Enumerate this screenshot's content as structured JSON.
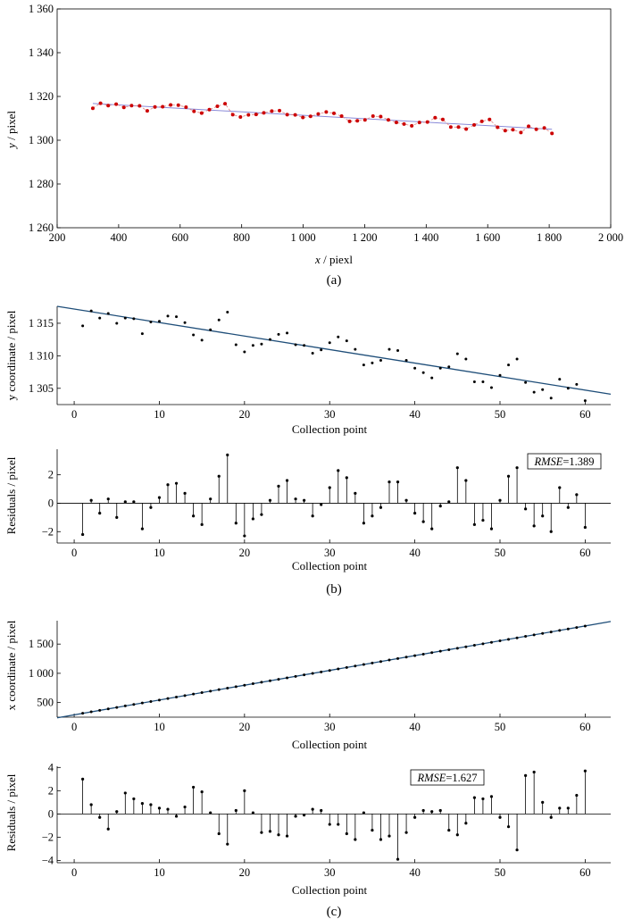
{
  "figure": {
    "panel_labels": [
      "(a)",
      "(b)",
      "(c)"
    ]
  },
  "colors": {
    "axis": "#000000",
    "red_points": "#cc0000",
    "red_line": "#e08080",
    "fit_a": "#8a8ad8",
    "fit_b": "#1f4e79",
    "fit_c": "#1f4e79",
    "points": "#000000"
  },
  "chart_data": [
    {
      "id": "a",
      "type": "scatter",
      "title": "",
      "xlabel_var": "x",
      "xlabel_unit": " / piexl",
      "ylabel_var": "y",
      "ylabel_unit": " / pixel",
      "xlim": [
        200,
        2000
      ],
      "ylim": [
        1260,
        1360
      ],
      "xticks": [
        200,
        400,
        600,
        800,
        1000,
        1200,
        1400,
        1600,
        1800,
        2000
      ],
      "xtick_labels": [
        "200",
        "400",
        "600",
        "800",
        "1 000",
        "1 200",
        "1 400",
        "1 600",
        "1 800",
        "2 000"
      ],
      "yticks": [
        1260,
        1280,
        1300,
        1320,
        1340,
        1360
      ],
      "ytick_labels": [
        "1 260",
        "1 280",
        "1 300",
        "1 320",
        "1 340",
        "1 360"
      ],
      "fit": {
        "x": [
          316,
          1809
        ],
        "y": [
          1316.8,
          1305.0
        ]
      },
      "series": [
        {
          "name": "points",
          "x": [
            316,
            341,
            366,
            392,
            417,
            442,
            468,
            493,
            518,
            543,
            569,
            594,
            619,
            645,
            670,
            695,
            721,
            746,
            771,
            796,
            822,
            847,
            872,
            898,
            923,
            948,
            974,
            999,
            1024,
            1049,
            1075,
            1100,
            1125,
            1151,
            1176,
            1201,
            1227,
            1252,
            1277,
            1303,
            1328,
            1353,
            1378,
            1404,
            1429,
            1454,
            1480,
            1505,
            1530,
            1556,
            1581,
            1606,
            1632,
            1657,
            1682,
            1708,
            1733,
            1758,
            1784,
            1809
          ],
          "y": [
            1314.6,
            1316.9,
            1315.8,
            1316.5,
            1315.0,
            1315.8,
            1315.7,
            1313.4,
            1315.2,
            1315.3,
            1316.1,
            1316.0,
            1315.1,
            1313.2,
            1312.4,
            1314.0,
            1315.5,
            1316.7,
            1311.7,
            1310.6,
            1311.6,
            1311.8,
            1312.5,
            1313.3,
            1313.5,
            1311.7,
            1311.6,
            1310.4,
            1310.9,
            1312.0,
            1312.9,
            1312.3,
            1311.0,
            1308.6,
            1308.9,
            1309.3,
            1311.0,
            1310.8,
            1309.3,
            1308.1,
            1307.4,
            1306.6,
            1308.1,
            1308.3,
            1310.3,
            1309.5,
            1306.0,
            1306.0,
            1305.1,
            1307.0,
            1308.6,
            1309.5,
            1305.9,
            1304.4,
            1304.8,
            1303.5,
            1306.4,
            1305.0,
            1305.6,
            1303.1
          ]
        }
      ]
    },
    {
      "id": "b1",
      "type": "scatter",
      "xlabel": "Collection point",
      "ylabel": "y coordinate / pixel",
      "xlim": [
        -2,
        63
      ],
      "ylim": [
        1302.5,
        1317.6
      ],
      "xticks": [
        0,
        10,
        20,
        30,
        40,
        50,
        60
      ],
      "xtick_labels": [
        "0",
        "10",
        "20",
        "30",
        "40",
        "50",
        "60"
      ],
      "yticks": [
        1305,
        1310,
        1315
      ],
      "ytick_labels": [
        "1 305",
        "1 310",
        "1 315"
      ],
      "fit": {
        "x": [
          -2,
          63
        ],
        "y": [
          1317.6,
          1304.1
        ]
      },
      "x": [
        1,
        2,
        3,
        4,
        5,
        6,
        7,
        8,
        9,
        10,
        11,
        12,
        13,
        14,
        15,
        16,
        17,
        18,
        19,
        20,
        21,
        22,
        23,
        24,
        25,
        26,
        27,
        28,
        29,
        30,
        31,
        32,
        33,
        34,
        35,
        36,
        37,
        38,
        39,
        40,
        41,
        42,
        43,
        44,
        45,
        46,
        47,
        48,
        49,
        50,
        51,
        52,
        53,
        54,
        55,
        56,
        57,
        58,
        59,
        60
      ],
      "y": [
        1314.6,
        1316.9,
        1315.8,
        1316.5,
        1315.0,
        1315.8,
        1315.7,
        1313.4,
        1315.2,
        1315.3,
        1316.1,
        1316.0,
        1315.1,
        1313.2,
        1312.4,
        1314.0,
        1315.5,
        1316.7,
        1311.7,
        1310.6,
        1311.6,
        1311.8,
        1312.5,
        1313.3,
        1313.5,
        1311.7,
        1311.6,
        1310.4,
        1310.9,
        1312.0,
        1312.9,
        1312.3,
        1311.0,
        1308.6,
        1308.9,
        1309.3,
        1311.0,
        1310.8,
        1309.3,
        1308.1,
        1307.4,
        1306.6,
        1308.1,
        1308.3,
        1310.3,
        1309.5,
        1306.0,
        1306.0,
        1305.1,
        1307.0,
        1308.6,
        1309.5,
        1305.9,
        1304.4,
        1304.8,
        1303.5,
        1306.4,
        1305.0,
        1305.6,
        1303.1
      ]
    },
    {
      "id": "b2",
      "type": "stem",
      "xlabel": "Collection point",
      "ylabel": "Residuals / pixel",
      "rmse_label": "RMSE",
      "rmse_value": "=1.389",
      "xlim": [
        -2,
        63
      ],
      "ylim": [
        -2.8,
        3.8
      ],
      "xticks": [
        0,
        10,
        20,
        30,
        40,
        50,
        60
      ],
      "xtick_labels": [
        "0",
        "10",
        "20",
        "30",
        "40",
        "50",
        "60"
      ],
      "yticks": [
        -2,
        0,
        2
      ],
      "ytick_labels": [
        "−2",
        "0",
        "2"
      ],
      "x": [
        1,
        2,
        3,
        4,
        5,
        6,
        7,
        8,
        9,
        10,
        11,
        12,
        13,
        14,
        15,
        16,
        17,
        18,
        19,
        20,
        21,
        22,
        23,
        24,
        25,
        26,
        27,
        28,
        29,
        30,
        31,
        32,
        33,
        34,
        35,
        36,
        37,
        38,
        39,
        40,
        41,
        42,
        43,
        44,
        45,
        46,
        47,
        48,
        49,
        50,
        51,
        52,
        53,
        54,
        55,
        56,
        57,
        58,
        59,
        60
      ],
      "y": [
        -2.2,
        0.2,
        -0.7,
        0.3,
        -1.0,
        0.1,
        0.1,
        -1.8,
        -0.3,
        0.4,
        1.3,
        1.4,
        0.7,
        -0.9,
        -1.5,
        0.3,
        1.9,
        3.4,
        -1.4,
        -2.3,
        -1.1,
        -0.8,
        0.2,
        1.2,
        1.6,
        0.3,
        0.2,
        -0.9,
        -0.1,
        1.1,
        2.3,
        1.8,
        0.7,
        -1.4,
        -0.9,
        -0.3,
        1.5,
        1.5,
        0.2,
        -0.7,
        -1.3,
        -1.8,
        -0.2,
        0.1,
        2.5,
        1.6,
        -1.5,
        -1.2,
        -1.8,
        0.2,
        1.9,
        2.5,
        -0.4,
        -1.6,
        -0.9,
        -2.0,
        1.1,
        -0.3,
        0.6,
        -1.7
      ]
    },
    {
      "id": "c1",
      "type": "scatter",
      "xlabel": "Collection point",
      "ylabel": "x coordinate / pixel",
      "xlim": [
        -2,
        63
      ],
      "ylim": [
        250,
        1900
      ],
      "xticks": [
        0,
        10,
        20,
        30,
        40,
        50,
        60
      ],
      "xtick_labels": [
        "0",
        "10",
        "20",
        "30",
        "40",
        "50",
        "60"
      ],
      "yticks": [
        500,
        1000,
        1500
      ],
      "ytick_labels": [
        "500",
        "1 000",
        "1 500"
      ],
      "fit": {
        "x": [
          -2,
          63
        ],
        "y": [
          239,
          1886
        ]
      },
      "x": [
        1,
        2,
        3,
        4,
        5,
        6,
        7,
        8,
        9,
        10,
        11,
        12,
        13,
        14,
        15,
        16,
        17,
        18,
        19,
        20,
        21,
        22,
        23,
        24,
        25,
        26,
        27,
        28,
        29,
        30,
        31,
        32,
        33,
        34,
        35,
        36,
        37,
        38,
        39,
        40,
        41,
        42,
        43,
        44,
        45,
        46,
        47,
        48,
        49,
        50,
        51,
        52,
        53,
        54,
        55,
        56,
        57,
        58,
        59,
        60
      ],
      "y": [
        316,
        341,
        366,
        392,
        417,
        442,
        468,
        493,
        518,
        543,
        569,
        594,
        619,
        645,
        670,
        695,
        721,
        746,
        771,
        796,
        822,
        847,
        872,
        898,
        923,
        948,
        974,
        999,
        1024,
        1049,
        1075,
        1100,
        1125,
        1151,
        1176,
        1201,
        1227,
        1252,
        1277,
        1303,
        1328,
        1353,
        1378,
        1404,
        1429,
        1454,
        1480,
        1505,
        1530,
        1556,
        1581,
        1606,
        1632,
        1657,
        1682,
        1708,
        1733,
        1758,
        1784,
        1809
      ]
    },
    {
      "id": "c2",
      "type": "stem",
      "xlabel": "Collection point",
      "ylabel": "Residuals / pixel",
      "rmse_label": "RMSE",
      "rmse_value": "=1.627",
      "xlim": [
        -2,
        63
      ],
      "ylim": [
        -4.2,
        4.1
      ],
      "xticks": [
        0,
        10,
        20,
        30,
        40,
        50,
        60
      ],
      "xtick_labels": [
        "0",
        "10",
        "20",
        "30",
        "40",
        "50",
        "60"
      ],
      "yticks": [
        -4,
        -2,
        0,
        2,
        4
      ],
      "ytick_labels": [
        "−4",
        "−2",
        "0",
        "2",
        "4"
      ],
      "x": [
        1,
        2,
        3,
        4,
        5,
        6,
        7,
        8,
        9,
        10,
        11,
        12,
        13,
        14,
        15,
        16,
        17,
        18,
        19,
        20,
        21,
        22,
        23,
        24,
        25,
        26,
        27,
        28,
        29,
        30,
        31,
        32,
        33,
        34,
        35,
        36,
        37,
        38,
        39,
        40,
        41,
        42,
        43,
        44,
        45,
        46,
        47,
        48,
        49,
        50,
        51,
        52,
        53,
        54,
        55,
        56,
        57,
        58,
        59,
        60
      ],
      "y": [
        3.0,
        0.8,
        -0.3,
        -1.3,
        0.2,
        1.8,
        1.3,
        0.9,
        0.8,
        0.5,
        0.4,
        -0.2,
        0.6,
        2.3,
        1.9,
        0.1,
        -1.7,
        -2.6,
        0.3,
        2.0,
        0.1,
        -1.6,
        -1.5,
        -1.8,
        -1.9,
        -0.2,
        -0.1,
        0.4,
        0.3,
        -0.9,
        -0.9,
        -1.7,
        -2.2,
        0.1,
        -1.4,
        -2.2,
        -1.9,
        -3.9,
        -1.6,
        -0.3,
        0.3,
        0.2,
        0.3,
        -1.4,
        -1.8,
        -0.8,
        1.4,
        1.3,
        1.5,
        -0.3,
        -1.1,
        -3.1,
        3.3,
        3.6,
        1.0,
        -0.3,
        0.5,
        0.5,
        1.6,
        3.7
      ]
    }
  ]
}
